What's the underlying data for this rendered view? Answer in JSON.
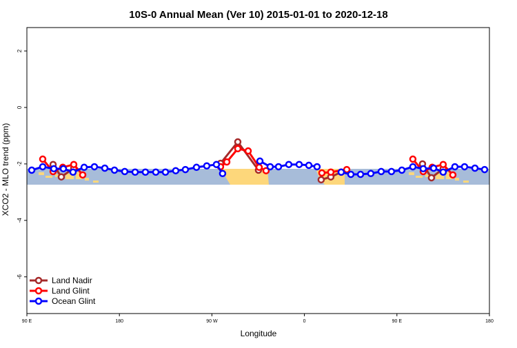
{
  "chart_data": {
    "type": "line",
    "title": "10S-0 Annual Mean (Ver 10)   2015-01-01 to 2020-12-18",
    "xlabel": "Longitude",
    "ylabel": "XCO2 - MLO trend (ppm)",
    "xlim": [
      90,
      540
    ],
    "ylim": [
      -7.3,
      2.83
    ],
    "xticks": [
      90,
      180,
      270,
      360,
      450,
      540
    ],
    "xtick_labels": [
      "90 E",
      "180",
      "90 W",
      "0",
      "90 E",
      "180"
    ],
    "yticks": [
      2,
      0,
      -2,
      -4,
      -6
    ],
    "ytick_labels": [
      "2",
      "0",
      "-2",
      "-4",
      "-6"
    ],
    "grid": false,
    "legend_position": "bottom-left",
    "series": [
      {
        "name": "Land Nadir",
        "color": "#a52a2a",
        "points": [
          [
            115.5,
            -2.02
          ],
          [
            123.5,
            -2.46
          ],
          [
            135.6,
            -2.15
          ],
          null,
          [
            278.4,
            -1.98
          ],
          [
            295.2,
            -1.22
          ],
          [
            315.3,
            -2.22
          ],
          null,
          [
            376.3,
            -2.56
          ],
          [
            385.7,
            -2.46
          ],
          [
            395.8,
            -2.29
          ],
          null,
          [
            474.9,
            -2.0
          ],
          [
            483.6,
            -2.49
          ],
          [
            495.0,
            -2.17
          ]
        ]
      },
      {
        "name": "Land Glint",
        "color": "#ff0000",
        "points": [
          [
            105.4,
            -1.83
          ],
          [
            115.5,
            -2.27
          ],
          [
            124.9,
            -2.12
          ],
          [
            135.6,
            -2.02
          ],
          [
            144.3,
            -2.39
          ],
          null,
          [
            278.4,
            -2.1
          ],
          [
            284.5,
            -1.93
          ],
          [
            295.2,
            -1.46
          ],
          [
            305.3,
            -1.54
          ],
          [
            316.0,
            -2.12
          ],
          [
            322.7,
            -2.24
          ],
          null,
          [
            377.0,
            -2.32
          ],
          [
            385.7,
            -2.29
          ],
          [
            401.2,
            -2.2
          ],
          null,
          [
            465.5,
            -1.83
          ],
          [
            475.6,
            -2.27
          ],
          [
            484.3,
            -2.12
          ],
          [
            495.0,
            -2.02
          ],
          [
            504.4,
            -2.39
          ]
        ]
      },
      {
        "name": "Ocean Glint",
        "color": "#0000ff",
        "points": [
          [
            94.7,
            -2.22
          ],
          [
            105.4,
            -2.1
          ],
          [
            116.2,
            -2.17
          ],
          [
            125.5,
            -2.17
          ],
          [
            134.9,
            -2.29
          ],
          [
            145.7,
            -2.12
          ],
          [
            155.7,
            -2.1
          ],
          [
            165.8,
            -2.15
          ],
          [
            175.2,
            -2.22
          ],
          [
            185.2,
            -2.27
          ],
          [
            195.3,
            -2.29
          ],
          [
            205.3,
            -2.29
          ],
          [
            215.4,
            -2.29
          ],
          [
            224.8,
            -2.29
          ],
          [
            234.8,
            -2.24
          ],
          [
            244.2,
            -2.2
          ],
          [
            255.0,
            -2.12
          ],
          [
            265.0,
            -2.07
          ],
          [
            274.4,
            -2.02
          ],
          [
            280.4,
            -2.34
          ],
          null,
          [
            316.7,
            -1.9
          ],
          [
            326.7,
            -2.1
          ],
          [
            334.8,
            -2.1
          ],
          [
            344.8,
            -2.02
          ],
          [
            354.9,
            -2.02
          ],
          [
            364.3,
            -2.05
          ],
          [
            372.3,
            -2.1
          ],
          null,
          [
            395.8,
            -2.29
          ],
          [
            405.2,
            -2.37
          ],
          [
            414.6,
            -2.37
          ],
          [
            424.6,
            -2.34
          ],
          [
            434.7,
            -2.27
          ],
          [
            444.7,
            -2.27
          ],
          [
            454.8,
            -2.22
          ],
          [
            465.5,
            -2.1
          ],
          [
            475.6,
            -2.17
          ],
          [
            485.7,
            -2.15
          ],
          [
            495.0,
            -2.29
          ],
          [
            506.4,
            -2.1
          ],
          [
            515.8,
            -2.1
          ],
          [
            525.9,
            -2.15
          ],
          [
            535.3,
            -2.2
          ]
        ]
      }
    ],
    "map_band": {
      "ocean_color": "#a7bcd9",
      "land_color": "#fdd77b",
      "lat_range": "10S-0"
    }
  }
}
